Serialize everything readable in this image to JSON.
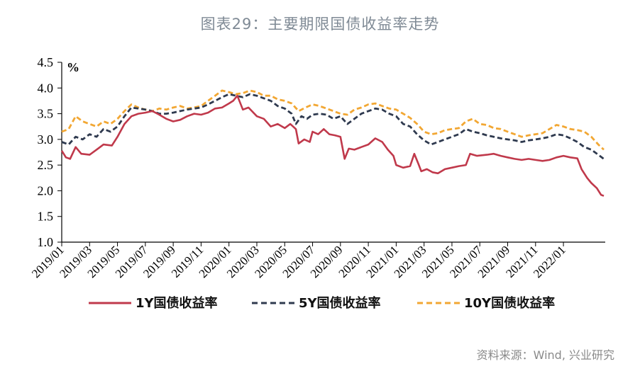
{
  "title": "图表29：主要期限国债收益率走势",
  "source": "资料来源：Wind, 兴业研究",
  "chart_data": {
    "type": "line",
    "ylabel": "%",
    "ylim": [
      1.0,
      4.5
    ],
    "yticks": [
      "1.0",
      "1.5",
      "2.0",
      "2.5",
      "3.0",
      "3.5",
      "4.0",
      "4.5"
    ],
    "xlim": [
      0,
      39
    ],
    "xtick_labels": [
      "2019/01",
      "2019/03",
      "2019/05",
      "2019/07",
      "2019/09",
      "2019/11",
      "2020/01",
      "2020/03",
      "2020/05",
      "2020/07",
      "2020/09",
      "2020/11",
      "2021/01",
      "2021/03",
      "2021/05",
      "2021/07",
      "2021/09",
      "2021/11",
      "2022/01"
    ],
    "legend_position": "bottom",
    "series": [
      {
        "name": "1Y国债收益率",
        "color": "#c0394b",
        "style": "solid",
        "points": [
          [
            0,
            2.78
          ],
          [
            0.3,
            2.65
          ],
          [
            0.6,
            2.62
          ],
          [
            1,
            2.85
          ],
          [
            1.4,
            2.72
          ],
          [
            2,
            2.7
          ],
          [
            2.6,
            2.82
          ],
          [
            3,
            2.9
          ],
          [
            3.6,
            2.88
          ],
          [
            4,
            3.05
          ],
          [
            4.5,
            3.3
          ],
          [
            5,
            3.45
          ],
          [
            5.5,
            3.5
          ],
          [
            6,
            3.52
          ],
          [
            6.5,
            3.55
          ],
          [
            7,
            3.48
          ],
          [
            7.5,
            3.4
          ],
          [
            8,
            3.35
          ],
          [
            8.5,
            3.38
          ],
          [
            9,
            3.45
          ],
          [
            9.5,
            3.5
          ],
          [
            10,
            3.48
          ],
          [
            10.5,
            3.52
          ],
          [
            11,
            3.6
          ],
          [
            11.5,
            3.62
          ],
          [
            12,
            3.7
          ],
          [
            12.3,
            3.75
          ],
          [
            12.6,
            3.85
          ],
          [
            13,
            3.58
          ],
          [
            13.4,
            3.62
          ],
          [
            14,
            3.45
          ],
          [
            14.5,
            3.4
          ],
          [
            15,
            3.25
          ],
          [
            15.5,
            3.3
          ],
          [
            16,
            3.22
          ],
          [
            16.4,
            3.3
          ],
          [
            16.8,
            3.2
          ],
          [
            17,
            2.92
          ],
          [
            17.4,
            3.0
          ],
          [
            17.8,
            2.95
          ],
          [
            18,
            3.15
          ],
          [
            18.4,
            3.1
          ],
          [
            18.8,
            3.2
          ],
          [
            19.2,
            3.1
          ],
          [
            19.6,
            3.08
          ],
          [
            20,
            3.05
          ],
          [
            20.3,
            2.62
          ],
          [
            20.6,
            2.82
          ],
          [
            21,
            2.8
          ],
          [
            21.5,
            2.85
          ],
          [
            22,
            2.9
          ],
          [
            22.5,
            3.02
          ],
          [
            23,
            2.95
          ],
          [
            23.4,
            2.8
          ],
          [
            23.8,
            2.68
          ],
          [
            24,
            2.5
          ],
          [
            24.5,
            2.45
          ],
          [
            25,
            2.48
          ],
          [
            25.3,
            2.72
          ],
          [
            25.6,
            2.52
          ],
          [
            25.8,
            2.38
          ],
          [
            26.2,
            2.42
          ],
          [
            26.6,
            2.36
          ],
          [
            27,
            2.34
          ],
          [
            27.5,
            2.42
          ],
          [
            28,
            2.45
          ],
          [
            28.5,
            2.48
          ],
          [
            29,
            2.5
          ],
          [
            29.3,
            2.72
          ],
          [
            29.8,
            2.68
          ],
          [
            30.5,
            2.7
          ],
          [
            31,
            2.72
          ],
          [
            31.5,
            2.68
          ],
          [
            32,
            2.65
          ],
          [
            32.5,
            2.62
          ],
          [
            33,
            2.6
          ],
          [
            33.5,
            2.62
          ],
          [
            34,
            2.6
          ],
          [
            34.5,
            2.58
          ],
          [
            35,
            2.6
          ],
          [
            35.5,
            2.65
          ],
          [
            36,
            2.68
          ],
          [
            36.5,
            2.65
          ],
          [
            37,
            2.63
          ],
          [
            37.3,
            2.42
          ],
          [
            37.7,
            2.25
          ],
          [
            38,
            2.15
          ],
          [
            38.4,
            2.05
          ],
          [
            38.7,
            1.92
          ],
          [
            38.9,
            1.9
          ]
        ]
      },
      {
        "name": "5Y国债收益率",
        "color": "#2f3a4f",
        "style": "dashed",
        "points": [
          [
            0,
            2.95
          ],
          [
            0.5,
            2.9
          ],
          [
            1,
            3.05
          ],
          [
            1.5,
            3.0
          ],
          [
            2,
            3.1
          ],
          [
            2.5,
            3.05
          ],
          [
            3,
            3.2
          ],
          [
            3.5,
            3.15
          ],
          [
            4,
            3.25
          ],
          [
            4.5,
            3.45
          ],
          [
            5,
            3.62
          ],
          [
            5.5,
            3.6
          ],
          [
            6,
            3.58
          ],
          [
            6.5,
            3.55
          ],
          [
            7,
            3.5
          ],
          [
            7.5,
            3.5
          ],
          [
            8,
            3.52
          ],
          [
            8.5,
            3.55
          ],
          [
            9,
            3.58
          ],
          [
            9.5,
            3.6
          ],
          [
            10,
            3.62
          ],
          [
            10.5,
            3.68
          ],
          [
            11,
            3.75
          ],
          [
            11.5,
            3.82
          ],
          [
            12,
            3.88
          ],
          [
            12.5,
            3.85
          ],
          [
            13,
            3.82
          ],
          [
            13.5,
            3.88
          ],
          [
            14,
            3.85
          ],
          [
            14.5,
            3.8
          ],
          [
            15,
            3.75
          ],
          [
            15.5,
            3.65
          ],
          [
            16,
            3.6
          ],
          [
            16.5,
            3.5
          ],
          [
            16.8,
            3.3
          ],
          [
            17.2,
            3.45
          ],
          [
            17.6,
            3.4
          ],
          [
            18,
            3.48
          ],
          [
            18.5,
            3.5
          ],
          [
            19,
            3.48
          ],
          [
            19.5,
            3.4
          ],
          [
            20,
            3.45
          ],
          [
            20.5,
            3.3
          ],
          [
            21,
            3.4
          ],
          [
            21.5,
            3.5
          ],
          [
            22,
            3.55
          ],
          [
            22.5,
            3.6
          ],
          [
            23,
            3.58
          ],
          [
            23.5,
            3.5
          ],
          [
            24,
            3.45
          ],
          [
            24.5,
            3.3
          ],
          [
            25,
            3.25
          ],
          [
            25.5,
            3.1
          ],
          [
            26,
            2.98
          ],
          [
            26.5,
            2.9
          ],
          [
            27,
            2.95
          ],
          [
            27.5,
            3.0
          ],
          [
            28,
            3.05
          ],
          [
            28.5,
            3.1
          ],
          [
            29,
            3.2
          ],
          [
            29.5,
            3.15
          ],
          [
            30,
            3.12
          ],
          [
            30.5,
            3.08
          ],
          [
            31,
            3.05
          ],
          [
            31.5,
            3.02
          ],
          [
            32,
            3.0
          ],
          [
            32.5,
            2.98
          ],
          [
            33,
            2.95
          ],
          [
            33.5,
            2.98
          ],
          [
            34,
            3.0
          ],
          [
            34.5,
            3.02
          ],
          [
            35,
            3.05
          ],
          [
            35.5,
            3.1
          ],
          [
            36,
            3.08
          ],
          [
            36.5,
            3.02
          ],
          [
            37,
            2.95
          ],
          [
            37.5,
            2.85
          ],
          [
            38,
            2.8
          ],
          [
            38.5,
            2.7
          ],
          [
            38.9,
            2.62
          ]
        ]
      },
      {
        "name": "10Y国债收益率",
        "color": "#f2a733",
        "style": "dashed",
        "points": [
          [
            0,
            3.15
          ],
          [
            0.5,
            3.2
          ],
          [
            1,
            3.45
          ],
          [
            1.5,
            3.35
          ],
          [
            2,
            3.3
          ],
          [
            2.5,
            3.25
          ],
          [
            3,
            3.35
          ],
          [
            3.5,
            3.3
          ],
          [
            4,
            3.4
          ],
          [
            4.5,
            3.55
          ],
          [
            5,
            3.68
          ],
          [
            5.5,
            3.62
          ],
          [
            6,
            3.58
          ],
          [
            6.5,
            3.55
          ],
          [
            7,
            3.6
          ],
          [
            7.5,
            3.58
          ],
          [
            8,
            3.62
          ],
          [
            8.5,
            3.65
          ],
          [
            9,
            3.6
          ],
          [
            9.5,
            3.62
          ],
          [
            10,
            3.65
          ],
          [
            10.5,
            3.75
          ],
          [
            11,
            3.85
          ],
          [
            11.5,
            3.95
          ],
          [
            12,
            3.92
          ],
          [
            12.5,
            3.88
          ],
          [
            13,
            3.9
          ],
          [
            13.5,
            3.95
          ],
          [
            14,
            3.92
          ],
          [
            14.5,
            3.85
          ],
          [
            15,
            3.85
          ],
          [
            15.5,
            3.78
          ],
          [
            16,
            3.75
          ],
          [
            16.5,
            3.7
          ],
          [
            17,
            3.55
          ],
          [
            17.5,
            3.62
          ],
          [
            18,
            3.68
          ],
          [
            18.5,
            3.65
          ],
          [
            19,
            3.6
          ],
          [
            19.5,
            3.55
          ],
          [
            20,
            3.5
          ],
          [
            20.5,
            3.48
          ],
          [
            21,
            3.58
          ],
          [
            21.5,
            3.62
          ],
          [
            22,
            3.68
          ],
          [
            22.5,
            3.7
          ],
          [
            23,
            3.65
          ],
          [
            23.5,
            3.6
          ],
          [
            24,
            3.58
          ],
          [
            24.5,
            3.5
          ],
          [
            25,
            3.42
          ],
          [
            25.5,
            3.3
          ],
          [
            26,
            3.15
          ],
          [
            26.5,
            3.1
          ],
          [
            27,
            3.12
          ],
          [
            27.5,
            3.18
          ],
          [
            28,
            3.2
          ],
          [
            28.5,
            3.22
          ],
          [
            29,
            3.35
          ],
          [
            29.5,
            3.4
          ],
          [
            30,
            3.3
          ],
          [
            30.5,
            3.28
          ],
          [
            31,
            3.22
          ],
          [
            31.5,
            3.2
          ],
          [
            32,
            3.15
          ],
          [
            32.5,
            3.1
          ],
          [
            33,
            3.05
          ],
          [
            33.5,
            3.08
          ],
          [
            34,
            3.1
          ],
          [
            34.5,
            3.12
          ],
          [
            35,
            3.2
          ],
          [
            35.5,
            3.28
          ],
          [
            36,
            3.25
          ],
          [
            36.5,
            3.2
          ],
          [
            37,
            3.18
          ],
          [
            37.5,
            3.15
          ],
          [
            38,
            3.05
          ],
          [
            38.5,
            2.9
          ],
          [
            38.9,
            2.8
          ]
        ]
      }
    ]
  }
}
